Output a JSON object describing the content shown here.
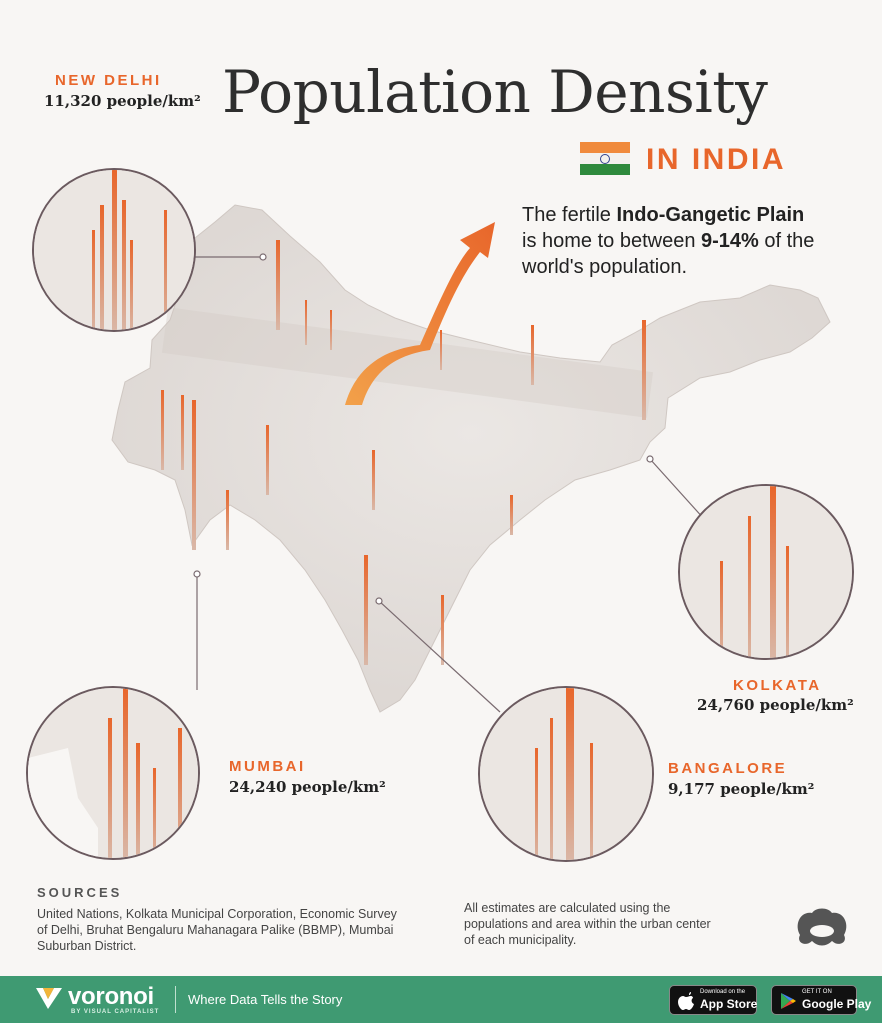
{
  "header": {
    "title": "Population Density",
    "subtitle": "IN INDIA"
  },
  "callout": {
    "text_1": "The fertile ",
    "text_bold_1": "Indo-Gangetic Plain",
    "text_2": " is home to between ",
    "text_bold_2": "9-14%",
    "text_3": " of the world's population."
  },
  "cities": [
    {
      "name": "NEW DELHI",
      "density": "11,320 people/km²"
    },
    {
      "name": "KOLKATA",
      "density": "24,760 people/km²"
    },
    {
      "name": "MUMBAI",
      "density": "24,240 people/km²"
    },
    {
      "name": "BANGALORE",
      "density": "9,177 people/km²"
    }
  ],
  "sources": {
    "heading": "SOURCES",
    "text": "United Nations, Kolkata Municipal Corporation, Economic Survey of Delhi, Bruhat Bengaluru Mahanagara Palike (BBMP), Mumbai Suburban District."
  },
  "note": "All estimates are calculated using the populations and area within the urban center of each municipality.",
  "footer": {
    "brand": "voronoi",
    "brand_sub": "BY VISUAL CAPITALIST",
    "tagline": "Where Data Tells the Story",
    "app_store_small": "Download on the",
    "app_store_big": "App Store",
    "google_play_small": "GET IT ON",
    "google_play_big": "Google Play"
  },
  "colors": {
    "accent": "#e8662b",
    "footer_bg": "#3f9a72",
    "background": "#f8f6f4"
  }
}
